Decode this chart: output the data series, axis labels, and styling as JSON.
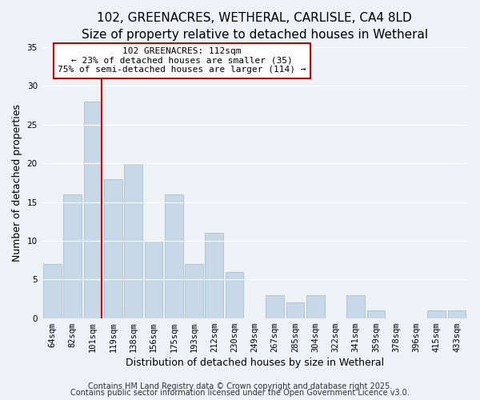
{
  "title_line1": "102, GREENACRES, WETHERAL, CARLISLE, CA4 8LD",
  "title_line2": "Size of property relative to detached houses in Wetheral",
  "xlabel": "Distribution of detached houses by size in Wetheral",
  "ylabel": "Number of detached properties",
  "bar_color": "#c8d8e8",
  "bar_edge_color": "#a8c0d4",
  "categories": [
    "64sqm",
    "82sqm",
    "101sqm",
    "119sqm",
    "138sqm",
    "156sqm",
    "175sqm",
    "193sqm",
    "212sqm",
    "230sqm",
    "249sqm",
    "267sqm",
    "285sqm",
    "304sqm",
    "322sqm",
    "341sqm",
    "359sqm",
    "378sqm",
    "396sqm",
    "415sqm",
    "433sqm"
  ],
  "values": [
    7,
    16,
    28,
    18,
    20,
    10,
    16,
    7,
    11,
    6,
    0,
    3,
    2,
    3,
    0,
    3,
    1,
    0,
    0,
    1,
    1
  ],
  "ylim": [
    0,
    35
  ],
  "yticks": [
    0,
    5,
    10,
    15,
    20,
    25,
    30,
    35
  ],
  "marker_line_color": "#cc0000",
  "annotation_title": "102 GREENACRES: 112sqm",
  "annotation_line2": "← 23% of detached houses are smaller (35)",
  "annotation_line3": "75% of semi-detached houses are larger (114) →",
  "annotation_box_color": "#ffffff",
  "annotation_border_color": "#cc0000",
  "footer_line1": "Contains HM Land Registry data © Crown copyright and database right 2025.",
  "footer_line2": "Contains public sector information licensed under the Open Government Licence v3.0.",
  "background_color": "#eef2f7",
  "plot_bg_color": "#eef2f7",
  "grid_color": "#ffffff",
  "title_fontsize": 11,
  "subtitle_fontsize": 10,
  "axis_label_fontsize": 9,
  "tick_fontsize": 7.5,
  "annotation_fontsize": 8,
  "footer_fontsize": 7
}
